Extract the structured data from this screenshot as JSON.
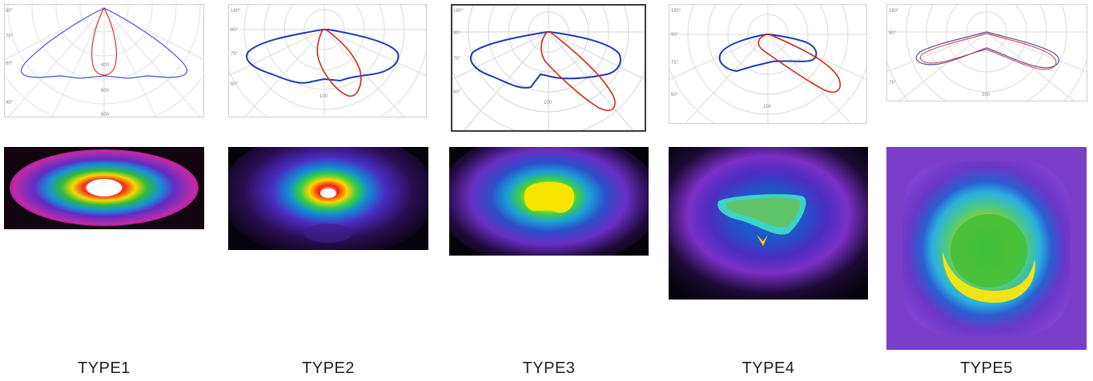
{
  "types": [
    {
      "label": "TYPE1",
      "polar_ticks": [
        "90°",
        "75°",
        "60°",
        "45°",
        "400",
        "600",
        "800"
      ]
    },
    {
      "label": "TYPE2",
      "polar_ticks": [
        "180°",
        "90°",
        "75°",
        "60°",
        "100"
      ]
    },
    {
      "label": "TYPE3",
      "polar_ticks": [
        "180°",
        "90°",
        "75°",
        "60°",
        "100"
      ]
    },
    {
      "label": "TYPE4",
      "polar_ticks": [
        "180°",
        "90°",
        "75°",
        "60°",
        "100"
      ]
    },
    {
      "label": "TYPE5",
      "polar_ticks": [
        "180°",
        "90°",
        "75°",
        "200"
      ]
    }
  ],
  "colors": {
    "curve_blue": "#2b3fb3",
    "curve_red": "#d2291f",
    "grid": "#d9d9d9",
    "label": "#1f1f1f"
  }
}
